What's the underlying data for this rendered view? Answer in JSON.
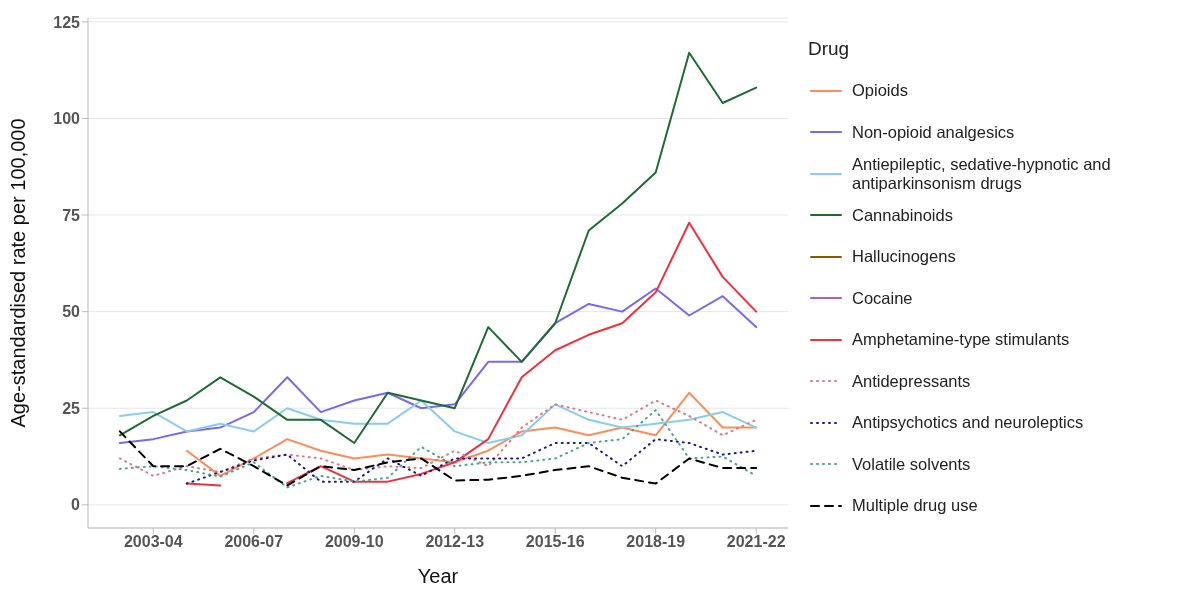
{
  "chart_data": {
    "type": "line",
    "xlabel": "Year",
    "ylabel": "Age-standardised rate per 100,000",
    "legend_title": "Drug",
    "legend": "right",
    "grid": "y",
    "marker": "none",
    "categories": [
      null,
      "2003-04",
      null,
      null,
      "2006-07",
      null,
      null,
      "2009-10",
      null,
      null,
      "2012-13",
      null,
      null,
      "2015-16",
      null,
      null,
      "2018-19",
      null,
      null,
      "2021-22"
    ],
    "ylim": [
      -6,
      126
    ],
    "yticks": [
      0,
      25,
      50,
      75,
      100,
      125
    ],
    "series": [
      {
        "name": "Opioids",
        "color": "#fc8d59",
        "line_style": "solid",
        "values": [
          null,
          null,
          14,
          7.5,
          12,
          17,
          14,
          12,
          13,
          12,
          11,
          14,
          19,
          20,
          18,
          20,
          18,
          29,
          20,
          20
        ]
      },
      {
        "name": "Non-opioid analgesics",
        "color": "#7b68ee",
        "line_style": "solid",
        "values": [
          16,
          17,
          19,
          20,
          24,
          33,
          24,
          27,
          29,
          25,
          26,
          37,
          37,
          47,
          52,
          50,
          56,
          49,
          54,
          46
        ]
      },
      {
        "name": "Antiepileptic, sedative-hypnotic and antiparkinsonism drugs",
        "color": "#87ceeb",
        "line_style": "solid",
        "values": [
          23,
          24,
          19,
          21,
          19,
          25,
          22,
          21,
          21,
          27,
          19,
          16,
          18,
          26,
          22,
          20,
          21,
          22,
          24,
          20
        ]
      },
      {
        "name": "Cannabinoids",
        "color": "#1e6b34",
        "line_style": "solid",
        "values": [
          18,
          23,
          27,
          33,
          28,
          22,
          22,
          16,
          29,
          27,
          25,
          46,
          37,
          47,
          71,
          78,
          86,
          117,
          104,
          108
        ]
      },
      {
        "name": "Hallucinogens",
        "color": "#8b5a00",
        "line_style": "solid",
        "values": [
          null,
          null,
          null,
          null,
          null,
          null,
          null,
          null,
          null,
          null,
          null,
          null,
          null,
          null,
          null,
          null,
          null,
          null,
          null,
          null
        ]
      },
      {
        "name": "Cocaine",
        "color": "#b05cc6",
        "line_style": "solid",
        "values": [
          null,
          null,
          null,
          null,
          null,
          null,
          null,
          null,
          null,
          null,
          null,
          null,
          null,
          null,
          null,
          null,
          null,
          null,
          null,
          null
        ]
      },
      {
        "name": "Amphetamine-type stimulants",
        "color": "#f03040",
        "line_style": "solid",
        "values": [
          null,
          null,
          5.5,
          5,
          null,
          5.6,
          10,
          6,
          6,
          8,
          11,
          17,
          33,
          40,
          44,
          47,
          55,
          73,
          59,
          50
        ]
      },
      {
        "name": "Antidepressants",
        "color": "#d87a8a",
        "line_style": "dotted",
        "values": [
          12,
          7.5,
          10,
          8.5,
          12,
          13,
          12,
          9,
          10,
          9.5,
          14,
          10,
          20,
          26,
          24,
          22,
          27,
          23,
          18,
          22
        ]
      },
      {
        "name": "Antipsychotics and neuroleptics",
        "color": "#1a1a8c",
        "line_style": "dotted",
        "values": [
          null,
          null,
          5.5,
          8.5,
          11.5,
          13,
          6,
          6,
          12,
          7.5,
          12,
          12,
          12,
          16,
          16,
          10,
          17,
          16,
          13,
          14
        ]
      },
      {
        "name": "Volatile solvents",
        "color": "#4ca38a",
        "line_style": "dotted",
        "values": [
          9.3,
          10,
          9,
          7.3,
          11,
          4.5,
          7.5,
          6,
          7,
          15,
          10,
          11,
          11,
          12,
          16,
          17,
          24.5,
          12,
          12.5,
          7.5
        ]
      },
      {
        "name": "Multiple drug use",
        "color": "#000000",
        "line_style": "dashed",
        "values": [
          19,
          10,
          10,
          14.5,
          10,
          5,
          10,
          9,
          11,
          12,
          6.3,
          6.5,
          7.5,
          9,
          10,
          7,
          5.5,
          12,
          9.5,
          9.5
        ]
      }
    ]
  }
}
